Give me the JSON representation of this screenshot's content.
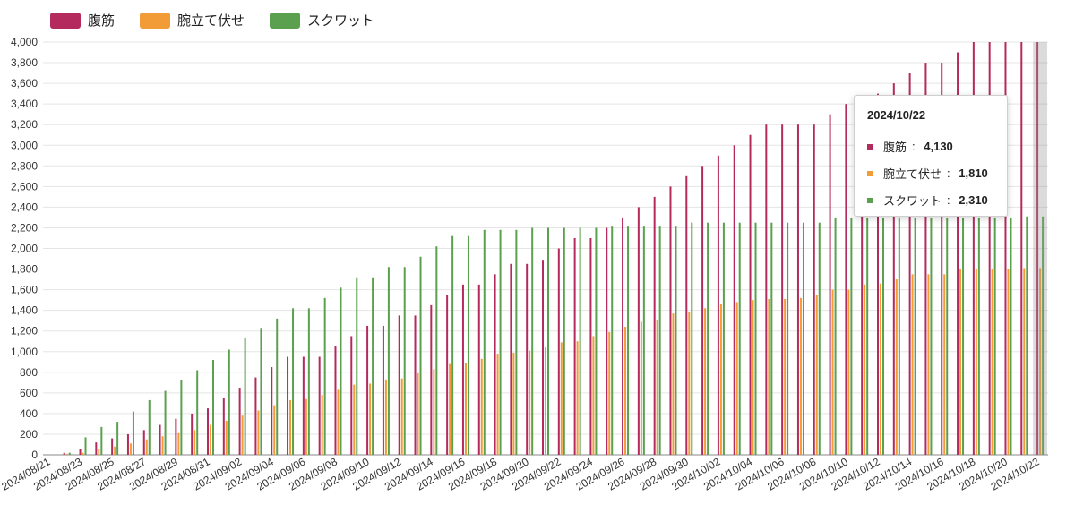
{
  "colors": {
    "abs": "#b52a5c",
    "push": "#f29c38",
    "squat": "#5ba04e",
    "grid": "#e5e5e5",
    "axis": "#333333"
  },
  "legend": [
    {
      "label": "腹筋",
      "color": "#b52a5c"
    },
    {
      "label": "腕立て伏せ",
      "color": "#f29c38"
    },
    {
      "label": "スクワット",
      "color": "#5ba04e"
    }
  ],
  "tooltip": {
    "title": "2024/10/22",
    "rows": [
      {
        "name": "腹筋",
        "value": "4,130",
        "color": "#b52a5c"
      },
      {
        "name": "腕立て伏せ",
        "value": "1,810",
        "color": "#f29c38"
      },
      {
        "name": "スクワット",
        "value": "2,310",
        "color": "#5ba04e"
      }
    ]
  },
  "chart_data": {
    "type": "bar",
    "title": "",
    "xlabel": "",
    "ylabel": "",
    "ylim": [
      0,
      4000
    ],
    "yticks": [
      "0",
      "200",
      "400",
      "600",
      "800",
      "1,000",
      "1,200",
      "1,400",
      "1,600",
      "1,800",
      "2,000",
      "2,200",
      "2,400",
      "2,600",
      "2,800",
      "3,000",
      "3,200",
      "3,400",
      "3,600",
      "3,800",
      "4,000"
    ],
    "grid": true,
    "legend_position": "top-left",
    "categories": [
      "2024/08/21",
      "2024/08/22",
      "2024/08/23",
      "2024/08/24",
      "2024/08/25",
      "2024/08/26",
      "2024/08/27",
      "2024/08/28",
      "2024/08/29",
      "2024/08/30",
      "2024/08/31",
      "2024/09/01",
      "2024/09/02",
      "2024/09/03",
      "2024/09/04",
      "2024/09/05",
      "2024/09/06",
      "2024/09/07",
      "2024/09/08",
      "2024/09/09",
      "2024/09/10",
      "2024/09/11",
      "2024/09/12",
      "2024/09/13",
      "2024/09/14",
      "2024/09/15",
      "2024/09/16",
      "2024/09/17",
      "2024/09/18",
      "2024/09/19",
      "2024/09/20",
      "2024/09/21",
      "2024/09/22",
      "2024/09/23",
      "2024/09/24",
      "2024/09/25",
      "2024/09/26",
      "2024/09/27",
      "2024/09/28",
      "2024/09/29",
      "2024/09/30",
      "2024/10/01",
      "2024/10/02",
      "2024/10/03",
      "2024/10/04",
      "2024/10/05",
      "2024/10/06",
      "2024/10/07",
      "2024/10/08",
      "2024/10/09",
      "2024/10/10",
      "2024/10/11",
      "2024/10/12",
      "2024/10/13",
      "2024/10/14",
      "2024/10/15",
      "2024/10/16",
      "2024/10/17",
      "2024/10/18",
      "2024/10/19",
      "2024/10/20",
      "2024/10/21",
      "2024/10/22"
    ],
    "x_tick_labels": [
      "2024/08/21",
      "2024/08/23",
      "2024/08/25",
      "2024/08/27",
      "2024/08/29",
      "2024/08/31",
      "2024/09/02",
      "2024/09/04",
      "2024/09/06",
      "2024/09/08",
      "2024/09/10",
      "2024/09/12",
      "2024/09/14",
      "2024/09/16",
      "2024/09/18",
      "2024/09/20",
      "2024/09/22",
      "2024/09/24",
      "2024/09/26",
      "2024/09/28",
      "2024/09/30",
      "2024/10/02",
      "2024/10/04",
      "2024/10/06",
      "2024/10/08",
      "2024/10/10",
      "2024/10/12",
      "2024/10/14",
      "2024/10/16",
      "2024/10/18",
      "2024/10/20",
      "2024/10/22"
    ],
    "series": [
      {
        "name": "腹筋",
        "color": "#b52a5c",
        "values": [
          0,
          20,
          60,
          120,
          160,
          200,
          240,
          290,
          350,
          400,
          450,
          550,
          650,
          750,
          850,
          950,
          950,
          950,
          1050,
          1150,
          1250,
          1250,
          1350,
          1350,
          1450,
          1550,
          1650,
          1650,
          1750,
          1850,
          1850,
          1890,
          2000,
          2100,
          2100,
          2200,
          2300,
          2400,
          2500,
          2600,
          2700,
          2800,
          2900,
          3000,
          3100,
          3200,
          3200,
          3200,
          3200,
          3300,
          3400,
          3400,
          3500,
          3600,
          3700,
          3800,
          3800,
          3900,
          4000,
          4000,
          4000,
          4000,
          4130
        ]
      },
      {
        "name": "腕立て伏せ",
        "color": "#f29c38",
        "values": [
          0,
          10,
          20,
          60,
          80,
          110,
          150,
          180,
          210,
          240,
          290,
          330,
          380,
          430,
          480,
          530,
          540,
          580,
          630,
          680,
          690,
          730,
          740,
          790,
          830,
          880,
          890,
          930,
          980,
          990,
          1010,
          1040,
          1090,
          1100,
          1150,
          1190,
          1240,
          1290,
          1310,
          1370,
          1380,
          1420,
          1460,
          1480,
          1500,
          1510,
          1510,
          1520,
          1550,
          1600,
          1600,
          1650,
          1660,
          1700,
          1750,
          1750,
          1750,
          1800,
          1800,
          1800,
          1800,
          1810,
          1810
        ]
      },
      {
        "name": "スクワット",
        "color": "#5ba04e",
        "values": [
          0,
          20,
          170,
          270,
          320,
          420,
          530,
          620,
          720,
          820,
          920,
          1020,
          1130,
          1230,
          1320,
          1420,
          1420,
          1520,
          1620,
          1720,
          1720,
          1820,
          1820,
          1920,
          2020,
          2120,
          2120,
          2180,
          2180,
          2180,
          2200,
          2200,
          2200,
          2200,
          2200,
          2220,
          2220,
          2220,
          2220,
          2220,
          2250,
          2250,
          2250,
          2250,
          2250,
          2250,
          2250,
          2250,
          2250,
          2300,
          2300,
          2300,
          2300,
          2300,
          2300,
          2300,
          2300,
          2300,
          2300,
          2300,
          2300,
          2310,
          2310
        ]
      }
    ]
  }
}
